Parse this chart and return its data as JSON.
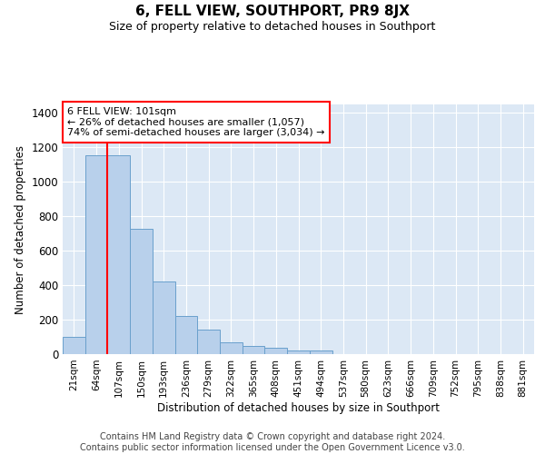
{
  "title": "6, FELL VIEW, SOUTHPORT, PR9 8JX",
  "subtitle": "Size of property relative to detached houses in Southport",
  "xlabel": "Distribution of detached houses by size in Southport",
  "ylabel": "Number of detached properties",
  "footer_line1": "Contains HM Land Registry data © Crown copyright and database right 2024.",
  "footer_line2": "Contains public sector information licensed under the Open Government Licence v3.0.",
  "annotation_line1": "6 FELL VIEW: 101sqm",
  "annotation_line2": "← 26% of detached houses are smaller (1,057)",
  "annotation_line3": "74% of semi-detached houses are larger (3,034) →",
  "bar_color": "#b8d0eb",
  "bar_edge_color": "#6aa0cc",
  "categories": [
    "21sqm",
    "64sqm",
    "107sqm",
    "150sqm",
    "193sqm",
    "236sqm",
    "279sqm",
    "322sqm",
    "365sqm",
    "408sqm",
    "451sqm",
    "494sqm",
    "537sqm",
    "580sqm",
    "623sqm",
    "666sqm",
    "709sqm",
    "752sqm",
    "795sqm",
    "838sqm",
    "881sqm"
  ],
  "values": [
    100,
    1155,
    1155,
    730,
    420,
    220,
    145,
    70,
    50,
    35,
    20,
    20,
    0,
    0,
    0,
    0,
    0,
    0,
    0,
    0,
    0
  ],
  "red_line_x": 1.5,
  "ylim": [
    0,
    1450
  ],
  "yticks": [
    0,
    200,
    400,
    600,
    800,
    1000,
    1200,
    1400
  ],
  "bg_color": "#dce8f5",
  "grid_color": "#ffffff",
  "title_fontsize": 11,
  "subtitle_fontsize": 9,
  "footer_fontsize": 7
}
